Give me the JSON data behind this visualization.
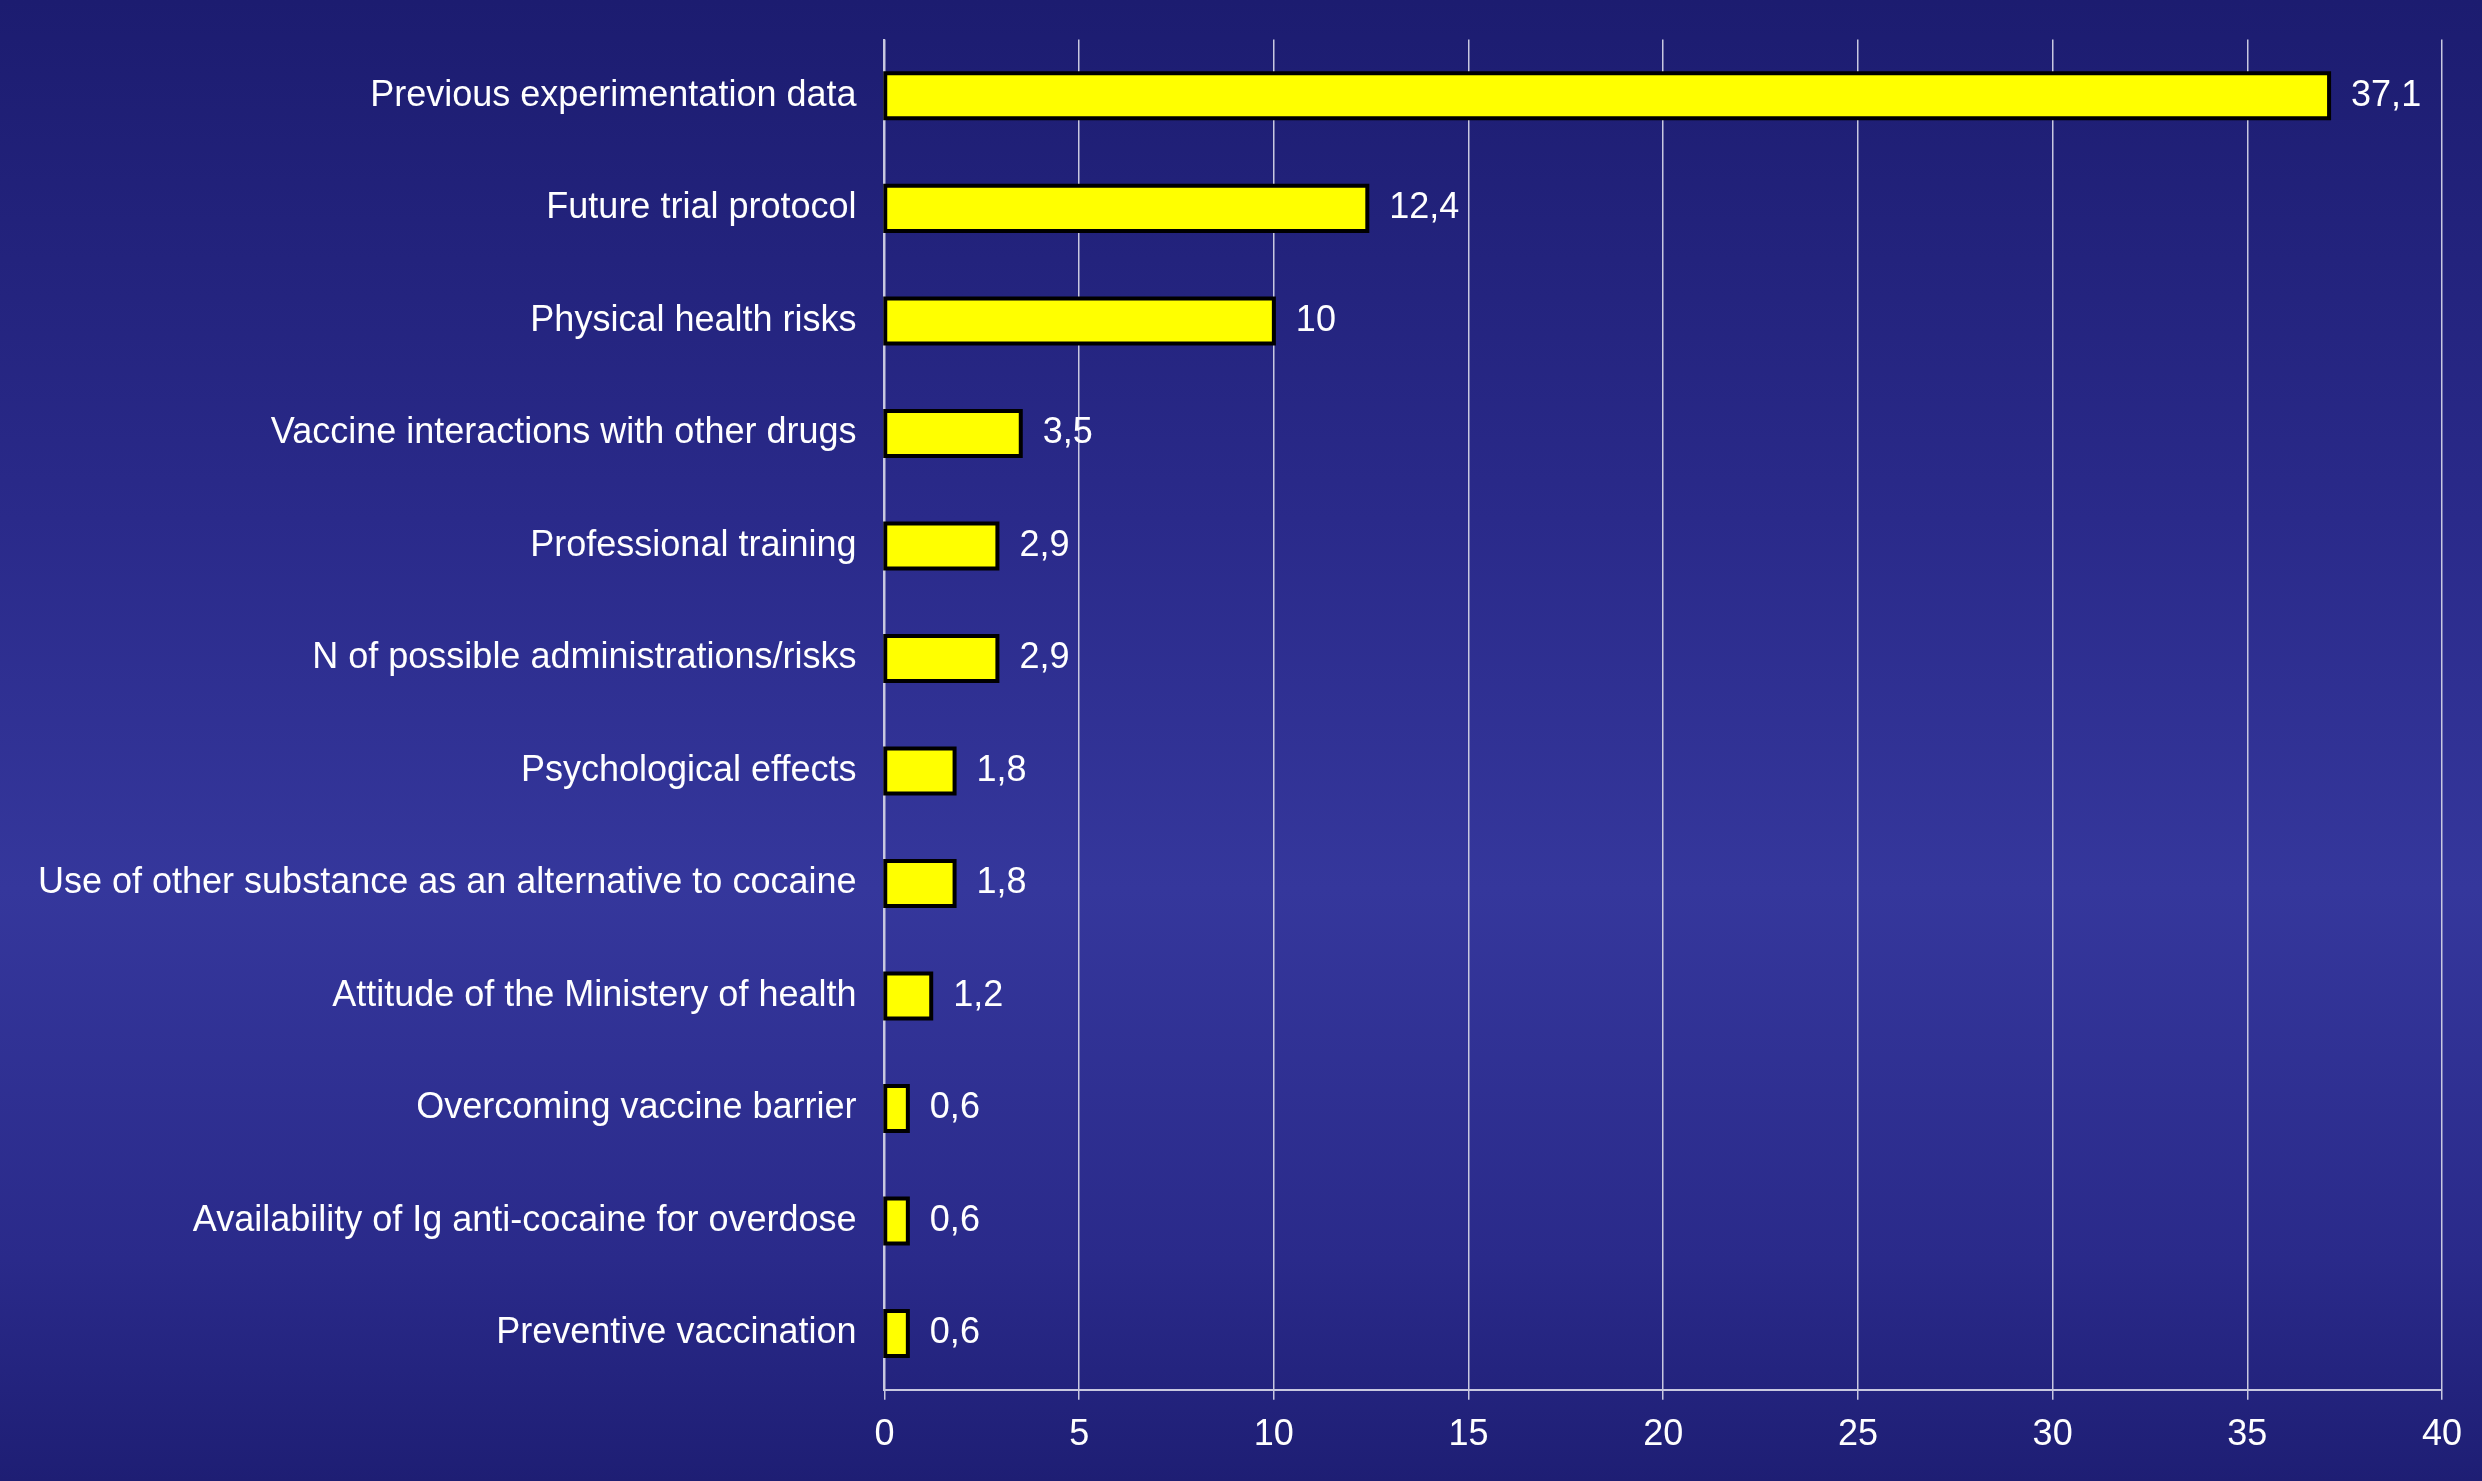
{
  "chart_data": {
    "type": "bar",
    "orientation": "horizontal",
    "categories": [
      "Previous experimentation data",
      "Future trial protocol",
      "Physical health risks",
      "Vaccine interactions with other drugs",
      "Professional training",
      "N of possible administrations/risks",
      "Psychological effects",
      "Use of other substance as an alternative to cocaine",
      "Attitude of the Ministery of health",
      "Overcoming vaccine barrier",
      "Availability of Ig anti-cocaine for overdose",
      "Preventive vaccination"
    ],
    "values": [
      37.1,
      12.4,
      10,
      3.5,
      2.9,
      2.9,
      1.8,
      1.8,
      1.2,
      0.6,
      0.6,
      0.6
    ],
    "value_labels": [
      "37,1",
      "12,4",
      "10",
      "3,5",
      "2,9",
      "2,9",
      "1,8",
      "1,8",
      "1,2",
      "0,6",
      "0,6",
      "0,6"
    ],
    "color": "#ffff00",
    "xlim": [
      0,
      40
    ],
    "xticks": [
      0,
      5,
      10,
      15,
      20,
      25,
      30,
      35,
      40
    ],
    "grid": "x"
  }
}
